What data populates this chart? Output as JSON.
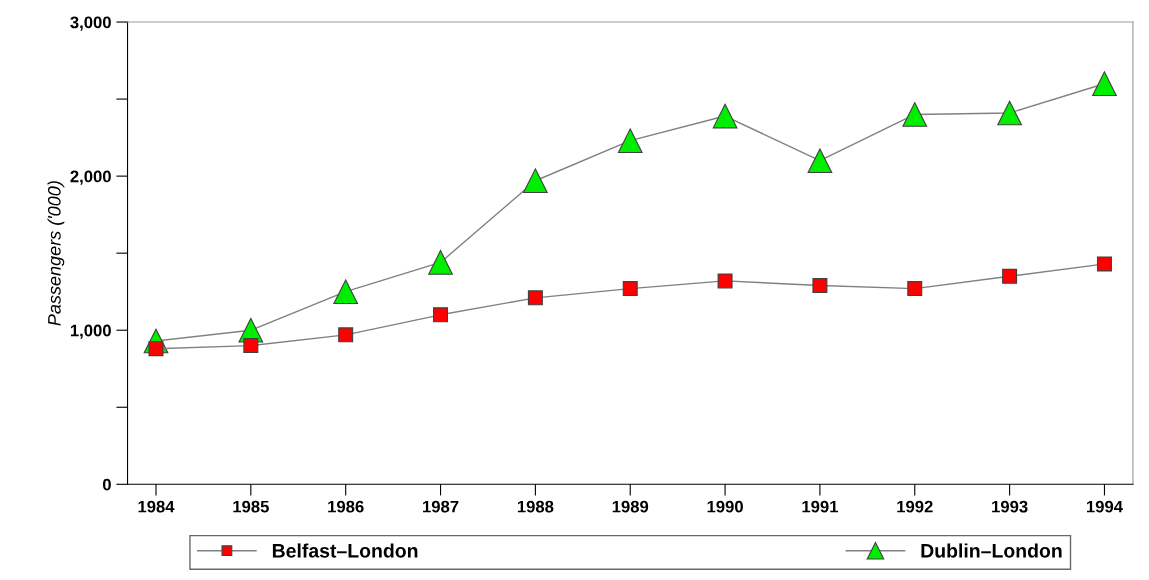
{
  "chart_data": {
    "type": "line",
    "ylabel": "Passengers ('000)",
    "x": [
      1984,
      1985,
      1986,
      1987,
      1988,
      1989,
      1990,
      1991,
      1992,
      1993,
      1994
    ],
    "series": [
      {
        "name": "Belfast–London",
        "color": "#ff0000",
        "marker": "square",
        "values": [
          880,
          900,
          970,
          1100,
          1210,
          1270,
          1320,
          1290,
          1270,
          1350,
          1430
        ]
      },
      {
        "name": "Dublin–London",
        "color": "#00ee00",
        "marker": "triangle",
        "values": [
          930,
          1000,
          1250,
          1440,
          1970,
          2230,
          2390,
          2100,
          2400,
          2410,
          2600
        ]
      }
    ],
    "xlim": [
      1983.7,
      1994.3
    ],
    "xticks": [
      1984,
      1985,
      1986,
      1987,
      1988,
      1989,
      1990,
      1991,
      1992,
      1993,
      1994
    ],
    "ylim": [
      0,
      3000
    ],
    "yticks": [
      {
        "value": 0,
        "label": "0"
      },
      {
        "value": 500,
        "label": null
      },
      {
        "value": 1000,
        "label": "1,000"
      },
      {
        "value": 1500,
        "label": null
      },
      {
        "value": 2000,
        "label": "2,000"
      },
      {
        "value": 2500,
        "label": null
      },
      {
        "value": 3000,
        "label": "3,000"
      }
    ],
    "grid": false,
    "legend": "bottom"
  }
}
